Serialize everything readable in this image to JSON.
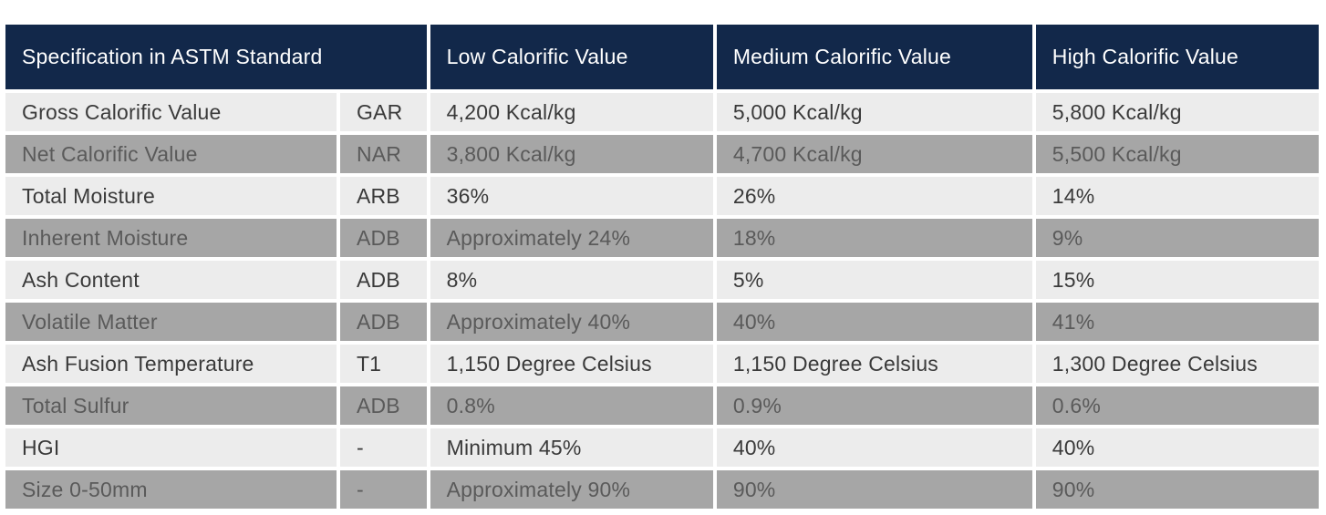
{
  "table": {
    "headers": {
      "spec": "Specification in ASTM Standard",
      "low": "Low Calorific Value",
      "medium": "Medium Calorific Value",
      "high": "High Calorific Value"
    },
    "rows": [
      {
        "name": "Gross Calorific Value",
        "code": "GAR",
        "low": "4,200 Kcal/kg",
        "medium": "5,000 Kcal/kg",
        "high": "5,800 Kcal/kg"
      },
      {
        "name": "Net Calorific Value",
        "code": "NAR",
        "low": "3,800 Kcal/kg",
        "medium": "4,700 Kcal/kg",
        "high": "5,500 Kcal/kg"
      },
      {
        "name": "Total Moisture",
        "code": "ARB",
        "low": "36%",
        "medium": "26%",
        "high": "14%"
      },
      {
        "name": "Inherent Moisture",
        "code": "ADB",
        "low": "Approximately 24%",
        "medium": "18%",
        "high": "9%"
      },
      {
        "name": "Ash Content",
        "code": "ADB",
        "low": "8%",
        "medium": "5%",
        "high": "15%"
      },
      {
        "name": "Volatile Matter",
        "code": "ADB",
        "low": "Approximately 40%",
        "medium": "40%",
        "high": "41%"
      },
      {
        "name": "Ash Fusion Temperature",
        "code": "T1",
        "low": "1,150 Degree Celsius",
        "medium": "1,150 Degree Celsius",
        "high": "1,300 Degree Celsius"
      },
      {
        "name": "Total Sulfur",
        "code": "ADB",
        "low": "0.8%",
        "medium": "0.9%",
        "high": "0.6%"
      },
      {
        "name": "HGI",
        "code": "-",
        "low": "Minimum 45%",
        "medium": "40%",
        "high": "40%"
      },
      {
        "name": "Size 0-50mm",
        "code": "-",
        "low": "Approximately 90%",
        "medium": "90%",
        "high": "90%"
      }
    ]
  },
  "colors": {
    "header_bg": "#12284a",
    "header_text": "#ffffff",
    "row_light": "#ececec",
    "row_dark": "#a6a6a6"
  }
}
